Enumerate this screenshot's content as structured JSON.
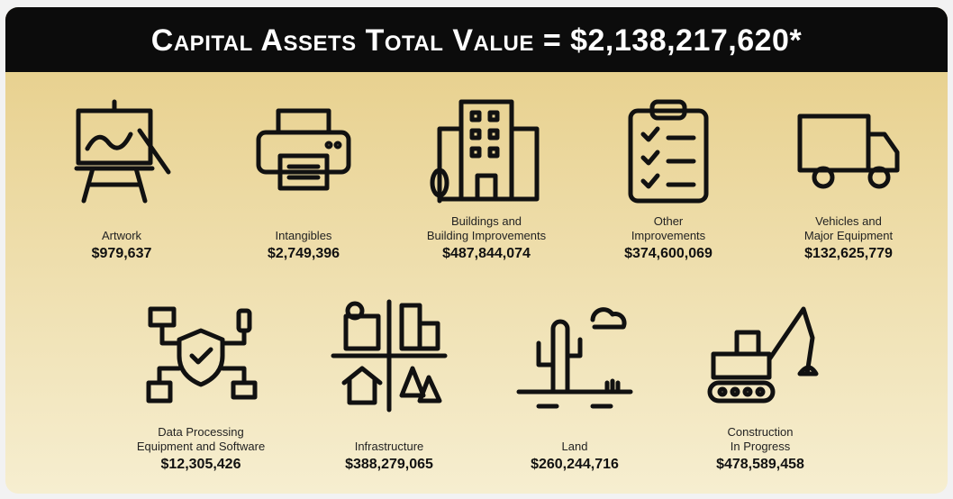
{
  "header": {
    "title": "Capital Assets Total Value = $2,138,217,620*"
  },
  "items": [
    {
      "lines": [
        "Artwork"
      ],
      "value": "$979,637"
    },
    {
      "lines": [
        "Intangibles"
      ],
      "value": "$2,749,396"
    },
    {
      "lines": [
        "Buildings and",
        "Building Improvements"
      ],
      "value": "$487,844,074"
    },
    {
      "lines": [
        "Other",
        "Improvements"
      ],
      "value": "$374,600,069"
    },
    {
      "lines": [
        "Vehicles and",
        "Major Equipment"
      ],
      "value": "$132,625,779"
    },
    {
      "lines": [
        "Data Processing",
        "Equipment and Software"
      ],
      "value": "$12,305,426"
    },
    {
      "lines": [
        "Infrastructure"
      ],
      "value": "$388,279,065"
    },
    {
      "lines": [
        "Land"
      ],
      "value": "$260,244,716"
    },
    {
      "lines": [
        "Construction",
        "In Progress"
      ],
      "value": "$478,589,458"
    }
  ]
}
